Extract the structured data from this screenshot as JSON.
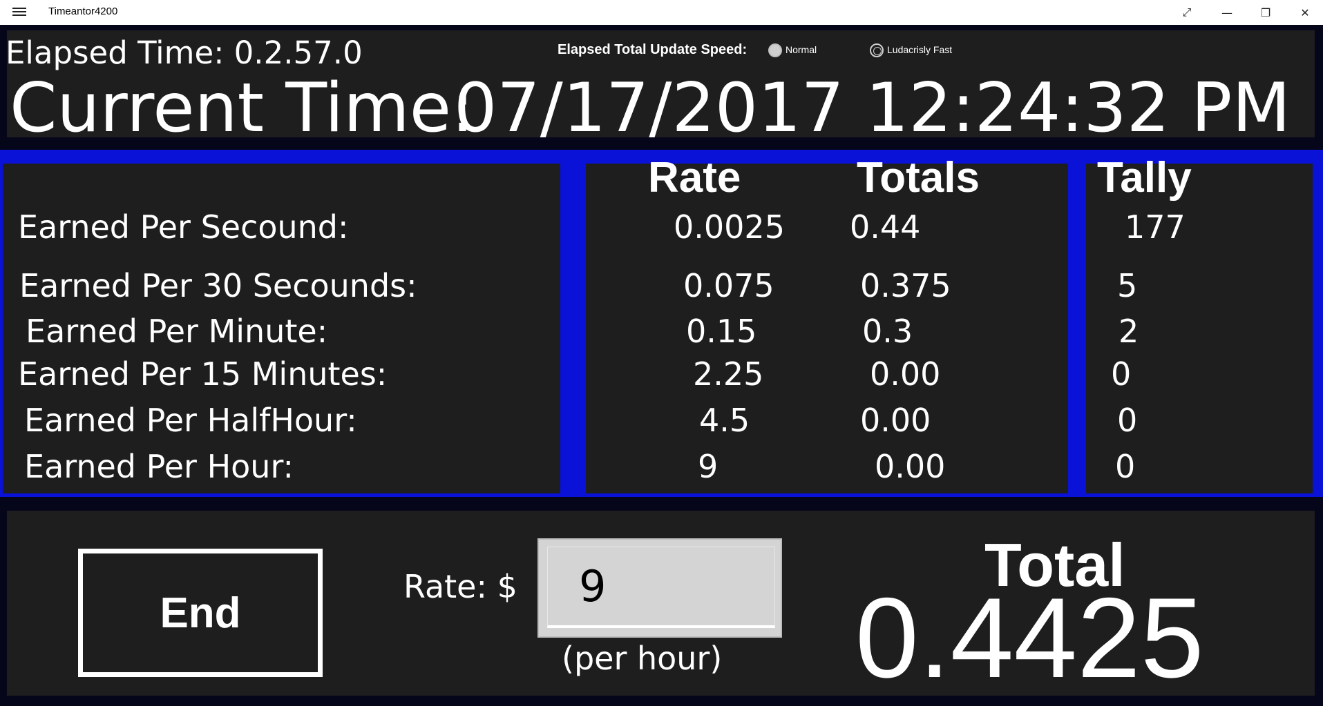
{
  "window": {
    "title": "Timeantor4200",
    "expand_glyph": "⤢",
    "minimize_glyph": "—",
    "restore_glyph": "❐",
    "close_glyph": "✕"
  },
  "header": {
    "elapsed": "Elapsed Time: 0.2.57.0",
    "speed_label": "Elapsed Total Update Speed:",
    "speed_options": [
      {
        "label": "Normal",
        "selected": true
      },
      {
        "label": "Ludacrisly Fast",
        "selected": false
      }
    ],
    "current_label": "Current Time:",
    "current_value": "07/17/2017 12:24:32 PM"
  },
  "table": {
    "headers": {
      "rate": "Rate",
      "totals": "Totals",
      "tally": "Tally"
    },
    "rows": [
      {
        "label": "Earned Per Secound:",
        "rate": "0.0025",
        "total": "0.44",
        "tally": "177"
      },
      {
        "label": "Earned Per 30 Secounds:",
        "rate": "0.075",
        "total": "0.375",
        "tally": "5"
      },
      {
        "label": "Earned Per Minute:",
        "rate": "0.15",
        "total": "0.3",
        "tally": "2"
      },
      {
        "label": "Earned Per 15 Minutes:",
        "rate": "2.25",
        "total": "0.00",
        "tally": "0"
      },
      {
        "label": "Earned Per HalfHour:",
        "rate": "4.5",
        "total": "0.00",
        "tally": "0"
      },
      {
        "label": "Earned Per Hour:",
        "rate": "9",
        "total": "0.00",
        "tally": "0"
      }
    ]
  },
  "footer": {
    "end_label": "End",
    "rate_label": "Rate: $",
    "rate_value": "9",
    "per_hour": "(per hour)",
    "total_label": "Total",
    "total_value": "0.4425"
  },
  "colors": {
    "accent_blue": "#0a12d8",
    "panel_bg": "#1e1e1e",
    "window_bg": "#06061a"
  }
}
